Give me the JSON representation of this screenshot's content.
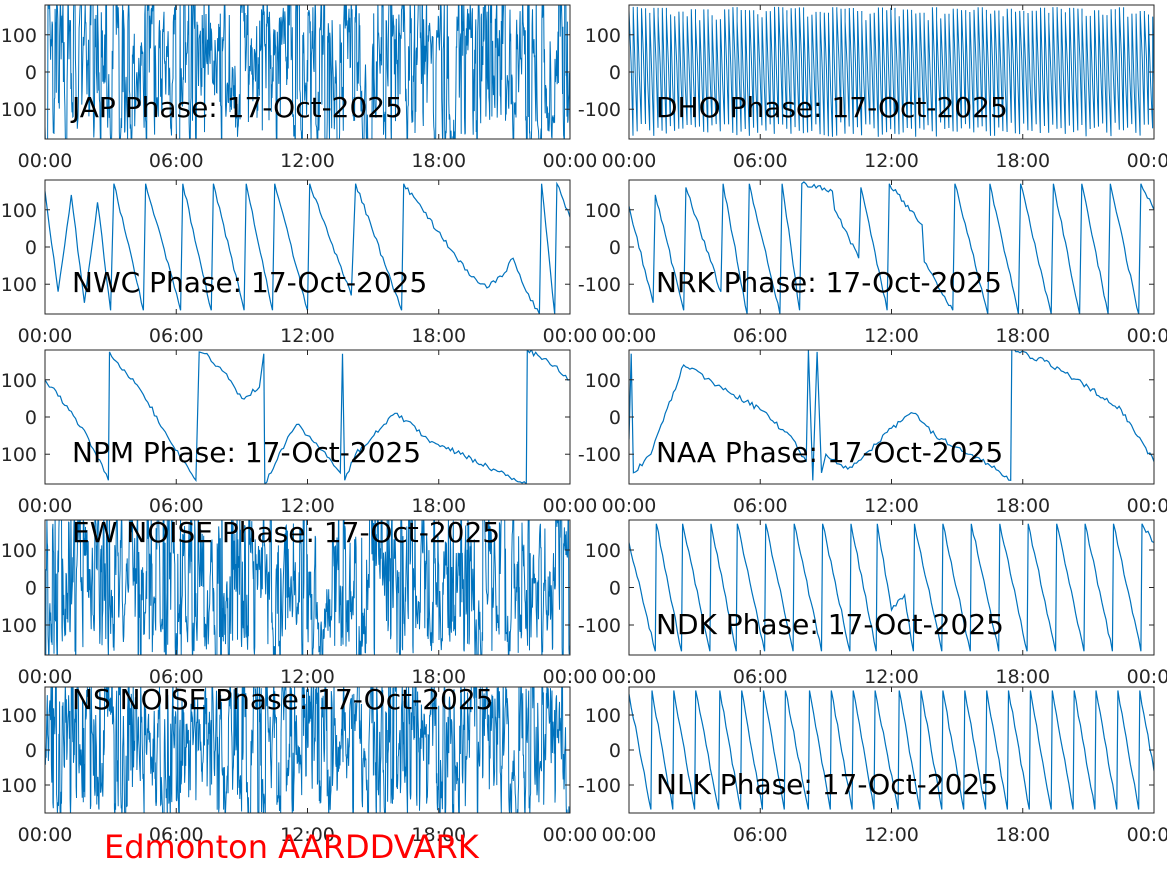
{
  "station_label": "Edmonton AARDDVARK",
  "colors": {
    "line": "#0072bd",
    "axis": "#262626",
    "station": "#ff0000"
  },
  "chart_data": [
    {
      "type": "line",
      "title": "JAP Phase: 17-Oct-2025",
      "signal": "noise",
      "xticks": [
        "00:00",
        "06:00",
        "12:00",
        "18:00",
        "00:00"
      ],
      "xlim": [
        0,
        24
      ],
      "yticks": [
        "100",
        "0",
        "100"
      ],
      "ylim": [
        -180,
        180
      ]
    },
    {
      "type": "line",
      "title": "DHO Phase: 17-Oct-2025",
      "signal": "dense-sawtooth",
      "xticks": [
        "00:00",
        "06:00",
        "12:00",
        "18:00",
        "00:00"
      ],
      "xlim": [
        0,
        24
      ],
      "yticks": [
        "100",
        "0",
        "-100"
      ],
      "ylim": [
        -180,
        180
      ]
    },
    {
      "type": "line",
      "title": "NWC Phase: 17-Oct-2025",
      "xticks": [
        "00:00",
        "06:00",
        "12:00",
        "18:00",
        "00:00"
      ],
      "xlim": [
        0,
        24
      ],
      "yticks": [
        "100",
        "0",
        "100"
      ],
      "ylim": [
        -180,
        180
      ],
      "x": [
        0,
        0.6,
        1.2,
        1.8,
        2.4,
        3.0,
        3.15,
        4.5,
        4.6,
        6.2,
        6.3,
        7.6,
        7.7,
        9.1,
        9.2,
        10.4,
        10.5,
        12.0,
        12.1,
        14.0,
        14.2,
        16.3,
        16.4,
        18.6,
        19.5,
        20.2,
        21.0,
        21.4,
        22.0,
        22.6,
        22.7,
        23.3,
        23.4,
        24.0
      ],
      "y": [
        150,
        -120,
        140,
        -150,
        120,
        -170,
        170,
        -170,
        170,
        -170,
        170,
        -170,
        170,
        -170,
        170,
        -170,
        170,
        -170,
        170,
        -130,
        170,
        -170,
        170,
        -10,
        -80,
        -110,
        -70,
        -30,
        -120,
        -180,
        170,
        -180,
        170,
        80
      ]
    },
    {
      "type": "line",
      "title": "NRK Phase: 17-Oct-2025",
      "xticks": [
        "00:00",
        "06:00",
        "12:00",
        "18:00",
        "00:00"
      ],
      "xlim": [
        0,
        24
      ],
      "yticks": [
        "100",
        "0",
        "-100"
      ],
      "ylim": [
        -180,
        180
      ],
      "x": [
        0,
        1.1,
        1.2,
        2.5,
        2.6,
        4.2,
        4.3,
        5.4,
        5.5,
        6.9,
        7.0,
        7.8,
        7.9,
        9.3,
        9.4,
        10.5,
        10.6,
        11.8,
        11.9,
        13.4,
        13.5,
        14.8,
        14.9,
        16.4,
        16.5,
        17.8,
        17.9,
        19.3,
        19.4,
        20.6,
        20.7,
        21.9,
        22.0,
        23.3,
        23.4,
        24.0
      ],
      "y": [
        110,
        -150,
        140,
        -170,
        160,
        -120,
        170,
        -180,
        170,
        -180,
        170,
        -170,
        170,
        150,
        100,
        -30,
        160,
        -170,
        170,
        60,
        -40,
        -170,
        170,
        -180,
        170,
        -180,
        170,
        -180,
        170,
        -180,
        170,
        -180,
        170,
        -180,
        170,
        100
      ]
    },
    {
      "type": "line",
      "title": "NPM Phase: 17-Oct-2025",
      "xticks": [
        "00:00",
        "06:00",
        "12:00",
        "18:00",
        "00:00"
      ],
      "xlim": [
        0,
        24
      ],
      "yticks": [
        "100",
        "0",
        "100"
      ],
      "ylim": [
        -180,
        180
      ],
      "x": [
        0,
        1.0,
        2.0,
        2.9,
        2.95,
        4.5,
        5.5,
        6.9,
        7.05,
        7.3,
        8.2,
        9.0,
        9.8,
        10.0,
        10.05,
        11.0,
        11.5,
        12.0,
        12.5,
        13.5,
        13.6,
        13.7,
        14.2,
        15.5,
        16.0,
        16.5,
        17.5,
        19.0,
        20.5,
        22.0,
        22.05,
        23.0,
        24.0
      ],
      "y": [
        100,
        30,
        -60,
        -170,
        175,
        60,
        -40,
        -170,
        175,
        170,
        120,
        50,
        80,
        170,
        -180,
        -70,
        -20,
        -50,
        -80,
        -150,
        170,
        -170,
        -100,
        -20,
        10,
        -10,
        -60,
        -100,
        -140,
        -180,
        180,
        150,
        100
      ]
    },
    {
      "type": "line",
      "title": "NAA Phase: 17-Oct-2025",
      "xticks": [
        "00:00",
        "06:00",
        "12:00",
        "18:00",
        "00:00"
      ],
      "xlim": [
        0,
        24
      ],
      "yticks": [
        "100",
        "0",
        "-100"
      ],
      "ylim": [
        -180,
        180
      ],
      "x": [
        0,
        0.1,
        0.2,
        1.0,
        2.5,
        4.5,
        6.0,
        7.5,
        8.1,
        8.2,
        8.4,
        8.6,
        8.8,
        9.0,
        10.0,
        11.0,
        12.0,
        13.0,
        14.0,
        15.5,
        16.5,
        17.45,
        17.5,
        19.0,
        21.0,
        22.5,
        24.0
      ],
      "y": [
        -60,
        170,
        -150,
        -100,
        140,
        70,
        20,
        -60,
        -120,
        180,
        -170,
        175,
        -150,
        -100,
        -140,
        -90,
        -30,
        10,
        -50,
        -100,
        -130,
        -170,
        180,
        150,
        80,
        20,
        -120
      ]
    },
    {
      "type": "line",
      "title": "EW NOISE Phase: 17-Oct-2025",
      "signal": "noise",
      "xticks": [
        "00:00",
        "06:00",
        "12:00",
        "18:00",
        "00:00"
      ],
      "xlim": [
        0,
        24
      ],
      "yticks": [
        "100",
        "0",
        "100"
      ],
      "ylim": [
        -180,
        180
      ]
    },
    {
      "type": "line",
      "title": "NDK Phase: 17-Oct-2025",
      "xticks": [
        "00:00",
        "06:00",
        "12:00",
        "18:00",
        "00:00"
      ],
      "xlim": [
        0,
        24
      ],
      "yticks": [
        "100",
        "0",
        "-100"
      ],
      "ylim": [
        -180,
        180
      ],
      "x": [
        0,
        1.2,
        1.25,
        2.4,
        2.45,
        3.7,
        3.75,
        4.9,
        4.95,
        6.2,
        6.25,
        7.5,
        7.55,
        8.8,
        8.85,
        10.1,
        10.15,
        11.3,
        11.35,
        12.0,
        12.6,
        13.0,
        13.05,
        14.3,
        14.35,
        15.6,
        15.65,
        16.9,
        16.95,
        18.2,
        18.25,
        19.5,
        19.55,
        20.8,
        20.85,
        22.1,
        22.15,
        23.4,
        23.45,
        24.0
      ],
      "y": [
        120,
        -170,
        170,
        -170,
        170,
        -170,
        170,
        -170,
        170,
        -170,
        170,
        -170,
        170,
        -170,
        170,
        -170,
        170,
        -170,
        170,
        -60,
        -20,
        -170,
        170,
        -170,
        170,
        -170,
        170,
        -170,
        170,
        -170,
        170,
        -170,
        170,
        -170,
        170,
        -170,
        170,
        -170,
        170,
        120
      ]
    },
    {
      "type": "line",
      "title": "NS NOISE Phase: 17-Oct-2025",
      "signal": "noise",
      "xticks": [
        "00:00",
        "06:00",
        "12:00",
        "18:00",
        "00:00"
      ],
      "xlim": [
        0,
        24
      ],
      "yticks": [
        "100",
        "0",
        "100"
      ],
      "ylim": [
        -180,
        180
      ]
    },
    {
      "type": "line",
      "title": "NLK Phase: 17-Oct-2025",
      "xticks": [
        "00:00",
        "06:00",
        "12:00",
        "18:00",
        "00:00"
      ],
      "xlim": [
        0,
        24
      ],
      "yticks": [
        "100",
        "0",
        "-100"
      ],
      "ylim": [
        -180,
        180
      ],
      "x": [
        0,
        1.0,
        1.05,
        2.0,
        2.05,
        3.0,
        3.05,
        4.1,
        4.15,
        5.1,
        5.15,
        6.1,
        6.15,
        7.1,
        7.15,
        8.2,
        8.25,
        9.2,
        9.25,
        10.2,
        10.25,
        11.2,
        11.25,
        12.3,
        12.35,
        13.3,
        13.35,
        14.3,
        14.35,
        15.3,
        15.35,
        16.3,
        16.35,
        17.3,
        17.35,
        18.3,
        18.35,
        19.3,
        19.35,
        20.3,
        20.35,
        21.3,
        21.35,
        22.3,
        22.35,
        23.3,
        23.35,
        24.0
      ],
      "y": [
        160,
        -170,
        170,
        -170,
        170,
        -170,
        170,
        -170,
        170,
        -170,
        170,
        -170,
        170,
        -170,
        170,
        -170,
        170,
        -170,
        170,
        -170,
        170,
        -170,
        170,
        -170,
        170,
        -170,
        170,
        -170,
        170,
        -170,
        170,
        -170,
        170,
        -170,
        170,
        -170,
        170,
        -170,
        170,
        -170,
        170,
        -170,
        170,
        -170,
        170,
        -170,
        170,
        -60
      ]
    }
  ]
}
